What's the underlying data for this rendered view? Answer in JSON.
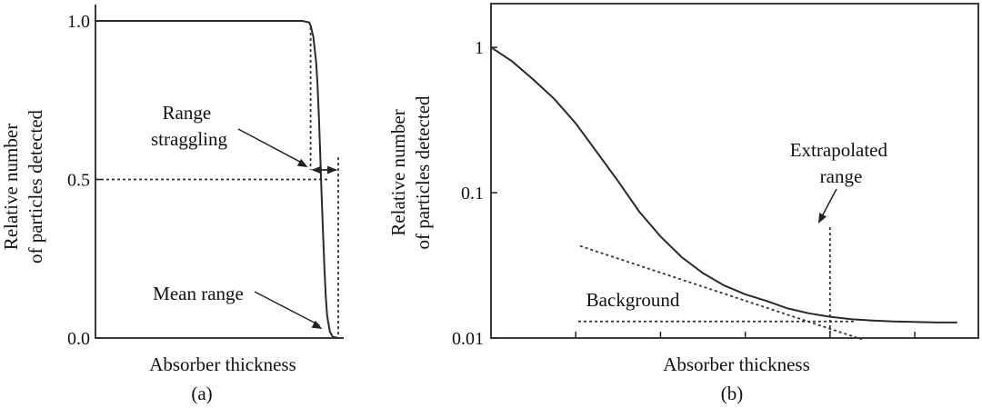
{
  "colors": {
    "ink": "#222222",
    "curve": "#2a2a2a",
    "background": "#ffffff"
  },
  "chart_data": [
    {
      "type": "line",
      "caption": "(a)",
      "xlabel": "Absorber thickness",
      "ylabel": [
        "Relative number",
        "of particles detected"
      ],
      "ylim": [
        0,
        1
      ],
      "yticks": [
        {
          "value": 0.0,
          "label": "0.0"
        },
        {
          "value": 0.5,
          "label": "0.5"
        },
        {
          "value": 1.0,
          "label": "1.0"
        }
      ],
      "series": [
        {
          "x": [
            0,
            0.5,
            0.75,
            0.775,
            0.78,
            0.79,
            0.8,
            0.805,
            0.81,
            0.815,
            0.82,
            0.825,
            0.83,
            0.835,
            0.84,
            0.85,
            0.86,
            0.88
          ],
          "y": [
            1.0,
            1.0,
            1.0,
            0.995,
            0.985,
            0.95,
            0.87,
            0.8,
            0.7,
            0.58,
            0.45,
            0.33,
            0.22,
            0.13,
            0.07,
            0.02,
            0.004,
            0.0
          ]
        }
      ],
      "annotations": [
        {
          "text": [
            "Range",
            "straggling"
          ]
        },
        {
          "text": [
            "Mean range"
          ]
        }
      ],
      "markers": {
        "straggling_left": 0.78,
        "straggling_right": 0.88,
        "mean_range": 0.832,
        "half_level": 0.5
      }
    },
    {
      "type": "line",
      "caption": "(b)",
      "xlabel": "Absorber thickness",
      "ylabel": [
        "Relative number",
        "of particles detected"
      ],
      "yscale": "log",
      "ylim": [
        0.01,
        2
      ],
      "yticks": [
        {
          "value": 1,
          "label": "1"
        },
        {
          "value": 0.1,
          "label": "0.1"
        },
        {
          "value": 0.01,
          "label": "0.01"
        }
      ],
      "series": [
        {
          "x": [
            0,
            0.1,
            0.2,
            0.3,
            0.4,
            0.5,
            0.6,
            0.7,
            0.8,
            0.9,
            1.0,
            1.1,
            1.2,
            1.3,
            1.4,
            1.5,
            1.6,
            1.7,
            1.8,
            1.9,
            2.0,
            2.1,
            2.2
          ],
          "y": [
            1.0,
            0.8,
            0.6,
            0.44,
            0.3,
            0.19,
            0.12,
            0.074,
            0.05,
            0.036,
            0.028,
            0.023,
            0.02,
            0.018,
            0.016,
            0.0148,
            0.014,
            0.0135,
            0.0132,
            0.013,
            0.0129,
            0.0128,
            0.0128
          ]
        }
      ],
      "annotations": [
        {
          "text": [
            "Extrapolated",
            "range"
          ]
        },
        {
          "text": [
            "Background"
          ]
        }
      ],
      "markers": {
        "extrapolated_range": 1.6,
        "background_level": 0.013,
        "tangent_from": [
          0.42,
          0.043
        ],
        "tangent_to": [
          1.75,
          0.0098
        ]
      }
    }
  ]
}
